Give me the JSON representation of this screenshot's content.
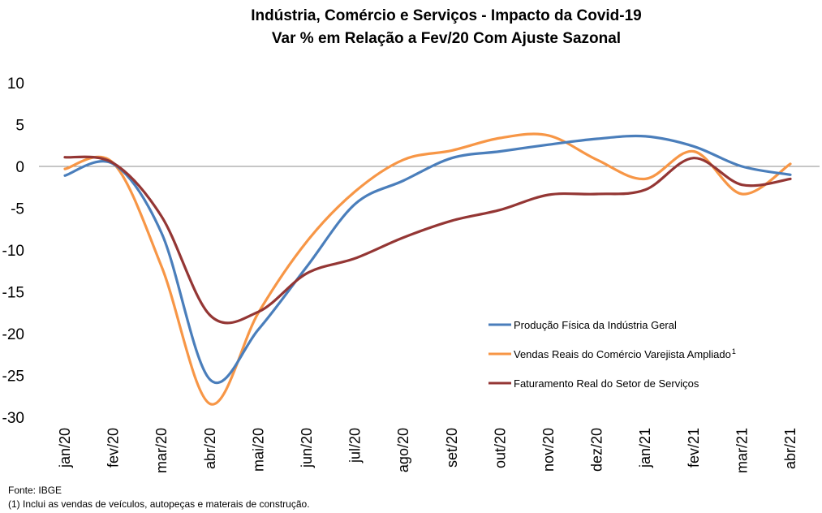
{
  "chart_data": {
    "type": "line",
    "title": "Indústria, Comércio e Serviços - Impacto  da Covid-19",
    "subtitle": "Var % em Relação a Fev/20 Com Ajuste Sazonal",
    "categories": [
      "jan/20",
      "fev/20",
      "mar/20",
      "abr/20",
      "mai/20",
      "jun/20",
      "jul/20",
      "ago/20",
      "set/20",
      "out/20",
      "nov/20",
      "dez/20",
      "jan/21",
      "fev/21",
      "mar/21",
      "abr/21"
    ],
    "ylim": [
      -30,
      10
    ],
    "yticks": [
      10,
      5,
      0,
      -5,
      -10,
      -15,
      -20,
      -25,
      -30
    ],
    "grid": false,
    "legend_position": "right",
    "series": [
      {
        "name": "Produção Física da Indústria Geral",
        "color": "#4a7ebb",
        "values": [
          -1.1,
          0.3,
          -8.0,
          -25.5,
          -19.5,
          -12.0,
          -4.5,
          -1.7,
          1.0,
          1.8,
          2.6,
          3.3,
          3.6,
          2.4,
          0.0,
          -1.0
        ]
      },
      {
        "name": "Vendas Reais do Comércio Varejista Ampliado",
        "name_sup": "1",
        "color": "#f79646",
        "values": [
          -0.3,
          0.4,
          -12.0,
          -28.4,
          -17.5,
          -9.0,
          -3.0,
          0.8,
          1.9,
          3.4,
          3.7,
          0.8,
          -1.5,
          1.8,
          -3.3,
          0.3
        ]
      },
      {
        "name": "Faturamento Real do Setor de Serviços",
        "color": "#943634",
        "values": [
          1.1,
          0.4,
          -6.0,
          -17.8,
          -17.4,
          -12.8,
          -11.0,
          -8.5,
          -6.5,
          -5.2,
          -3.4,
          -3.3,
          -2.8,
          1.0,
          -2.2,
          -1.5
        ]
      }
    ]
  },
  "footnotes": {
    "source": "Fonte: IBGE",
    "note": "(1) Inclui as vendas de veículos, autopeças e materais de construção."
  }
}
